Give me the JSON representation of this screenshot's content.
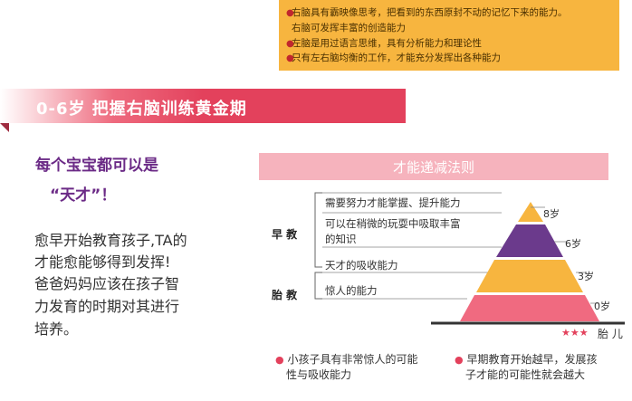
{
  "note": {
    "items": [
      "右脑具有霸映像思考，把看到的东西原封不动的记忆下来的能力。",
      "右脑可发挥丰富的创造能力",
      "左脑是用过语言思维，具有分析能力和理论性",
      "只有左右脑均衡的工作，才能充分发挥出各种能力"
    ]
  },
  "header": {
    "title": "0-6岁  把握右脑训练黄金期"
  },
  "lead": {
    "line1": "每个宝宝都可以是",
    "line2": "“天才”！"
  },
  "body": {
    "lines": [
      "愈早开始教育孩子,TA的",
      "才能愈能够得到发挥!",
      "爸爸妈妈应该在孩子智",
      "力发育的时期对其进行",
      "培养。"
    ]
  },
  "rule": {
    "title": "才能递减法则"
  },
  "stages": {
    "early": "早 教",
    "prenatal": "胎 教"
  },
  "levels": [
    {
      "label": "需要努力才能掌握、提升能力",
      "age": "8岁"
    },
    {
      "label": "可以在稍微的玩耍中吸取丰富",
      "label2": "的知识",
      "age": "6岁"
    },
    {
      "label": "天才的吸收能力",
      "age": "3岁"
    },
    {
      "label": "惊人的能力",
      "age": "0岁"
    }
  ],
  "base": {
    "stars": "★★★",
    "label": "胎 儿"
  },
  "notes": {
    "left1": "小孩子具有非常惊人的可能",
    "left2": "性与吸收能力",
    "right1": "早期教育开始越早，发展孩",
    "right2": "子才能的可能性就会越大"
  },
  "colors": {
    "orange": "#f7b53f",
    "red": "#e3415c",
    "purple": "#6b3a8c",
    "pink": "#f06a80",
    "light_pink": "#f6b3bd"
  }
}
